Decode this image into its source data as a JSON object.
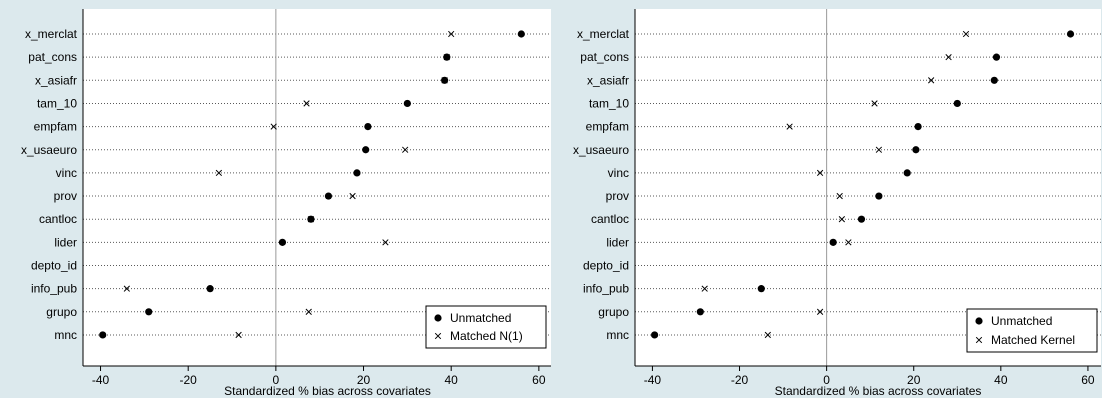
{
  "colors": {
    "frame_bg": "#dce9ed",
    "plot_bg": "#ffffff",
    "ink": "#000000",
    "zero_line": "#9a9a9a",
    "row_line": "#5a5a5a"
  },
  "chart_data": [
    {
      "type": "scatter",
      "title": "",
      "xlabel": "Standardized % bias across covariates",
      "ylabel": "",
      "xlim": [
        -44,
        63
      ],
      "xticks": [
        -40,
        -20,
        0,
        20,
        40,
        60
      ],
      "xtick_labels": [
        "-40",
        "-20",
        "0",
        "20",
        "40",
        "60"
      ],
      "grid": false,
      "legend_position": "bottom-right",
      "categories": [
        "x_merclat",
        "pat_cons",
        "x_asiafr",
        "tam_10",
        "empfam",
        "x_usaeuro",
        "vinc",
        "prov",
        "cantloc",
        "lider",
        "depto_id",
        "info_pub",
        "grupo",
        "mnc"
      ],
      "series": [
        {
          "name": "Unmatched",
          "marker": "dot",
          "values": [
            56,
            39,
            38.5,
            30,
            21,
            20.5,
            18.5,
            12,
            8,
            1.5,
            null,
            -15,
            -29,
            -39.5
          ]
        },
        {
          "name": "Matched N(1)",
          "marker": "x",
          "values": [
            40,
            39,
            38.5,
            7,
            -0.5,
            29.5,
            -13,
            17.5,
            8,
            25,
            null,
            -34,
            7.5,
            -8.5
          ]
        }
      ]
    },
    {
      "type": "scatter",
      "title": "",
      "xlabel": "Standardized % bias across covariates",
      "ylabel": "",
      "xlim": [
        -44,
        63
      ],
      "xticks": [
        -40,
        -20,
        0,
        20,
        40,
        60
      ],
      "xtick_labels": [
        "-40",
        "-20",
        "0",
        "20",
        "40",
        "60"
      ],
      "grid": false,
      "legend_position": "bottom-right",
      "categories": [
        "x_merclat",
        "pat_cons",
        "x_asiafr",
        "tam_10",
        "empfam",
        "x_usaeuro",
        "vinc",
        "prov",
        "cantloc",
        "lider",
        "depto_id",
        "info_pub",
        "grupo",
        "mnc"
      ],
      "series": [
        {
          "name": "Unmatched",
          "marker": "dot",
          "values": [
            56,
            39,
            38.5,
            30,
            21,
            20.5,
            18.5,
            12,
            8,
            1.5,
            null,
            -15,
            -29,
            -39.5
          ]
        },
        {
          "name": "Matched Kernel",
          "marker": "x",
          "values": [
            32,
            28,
            24,
            11,
            -8.5,
            12,
            -1.5,
            3,
            3.5,
            5,
            null,
            -28,
            -1.5,
            -13.5
          ]
        }
      ]
    }
  ]
}
